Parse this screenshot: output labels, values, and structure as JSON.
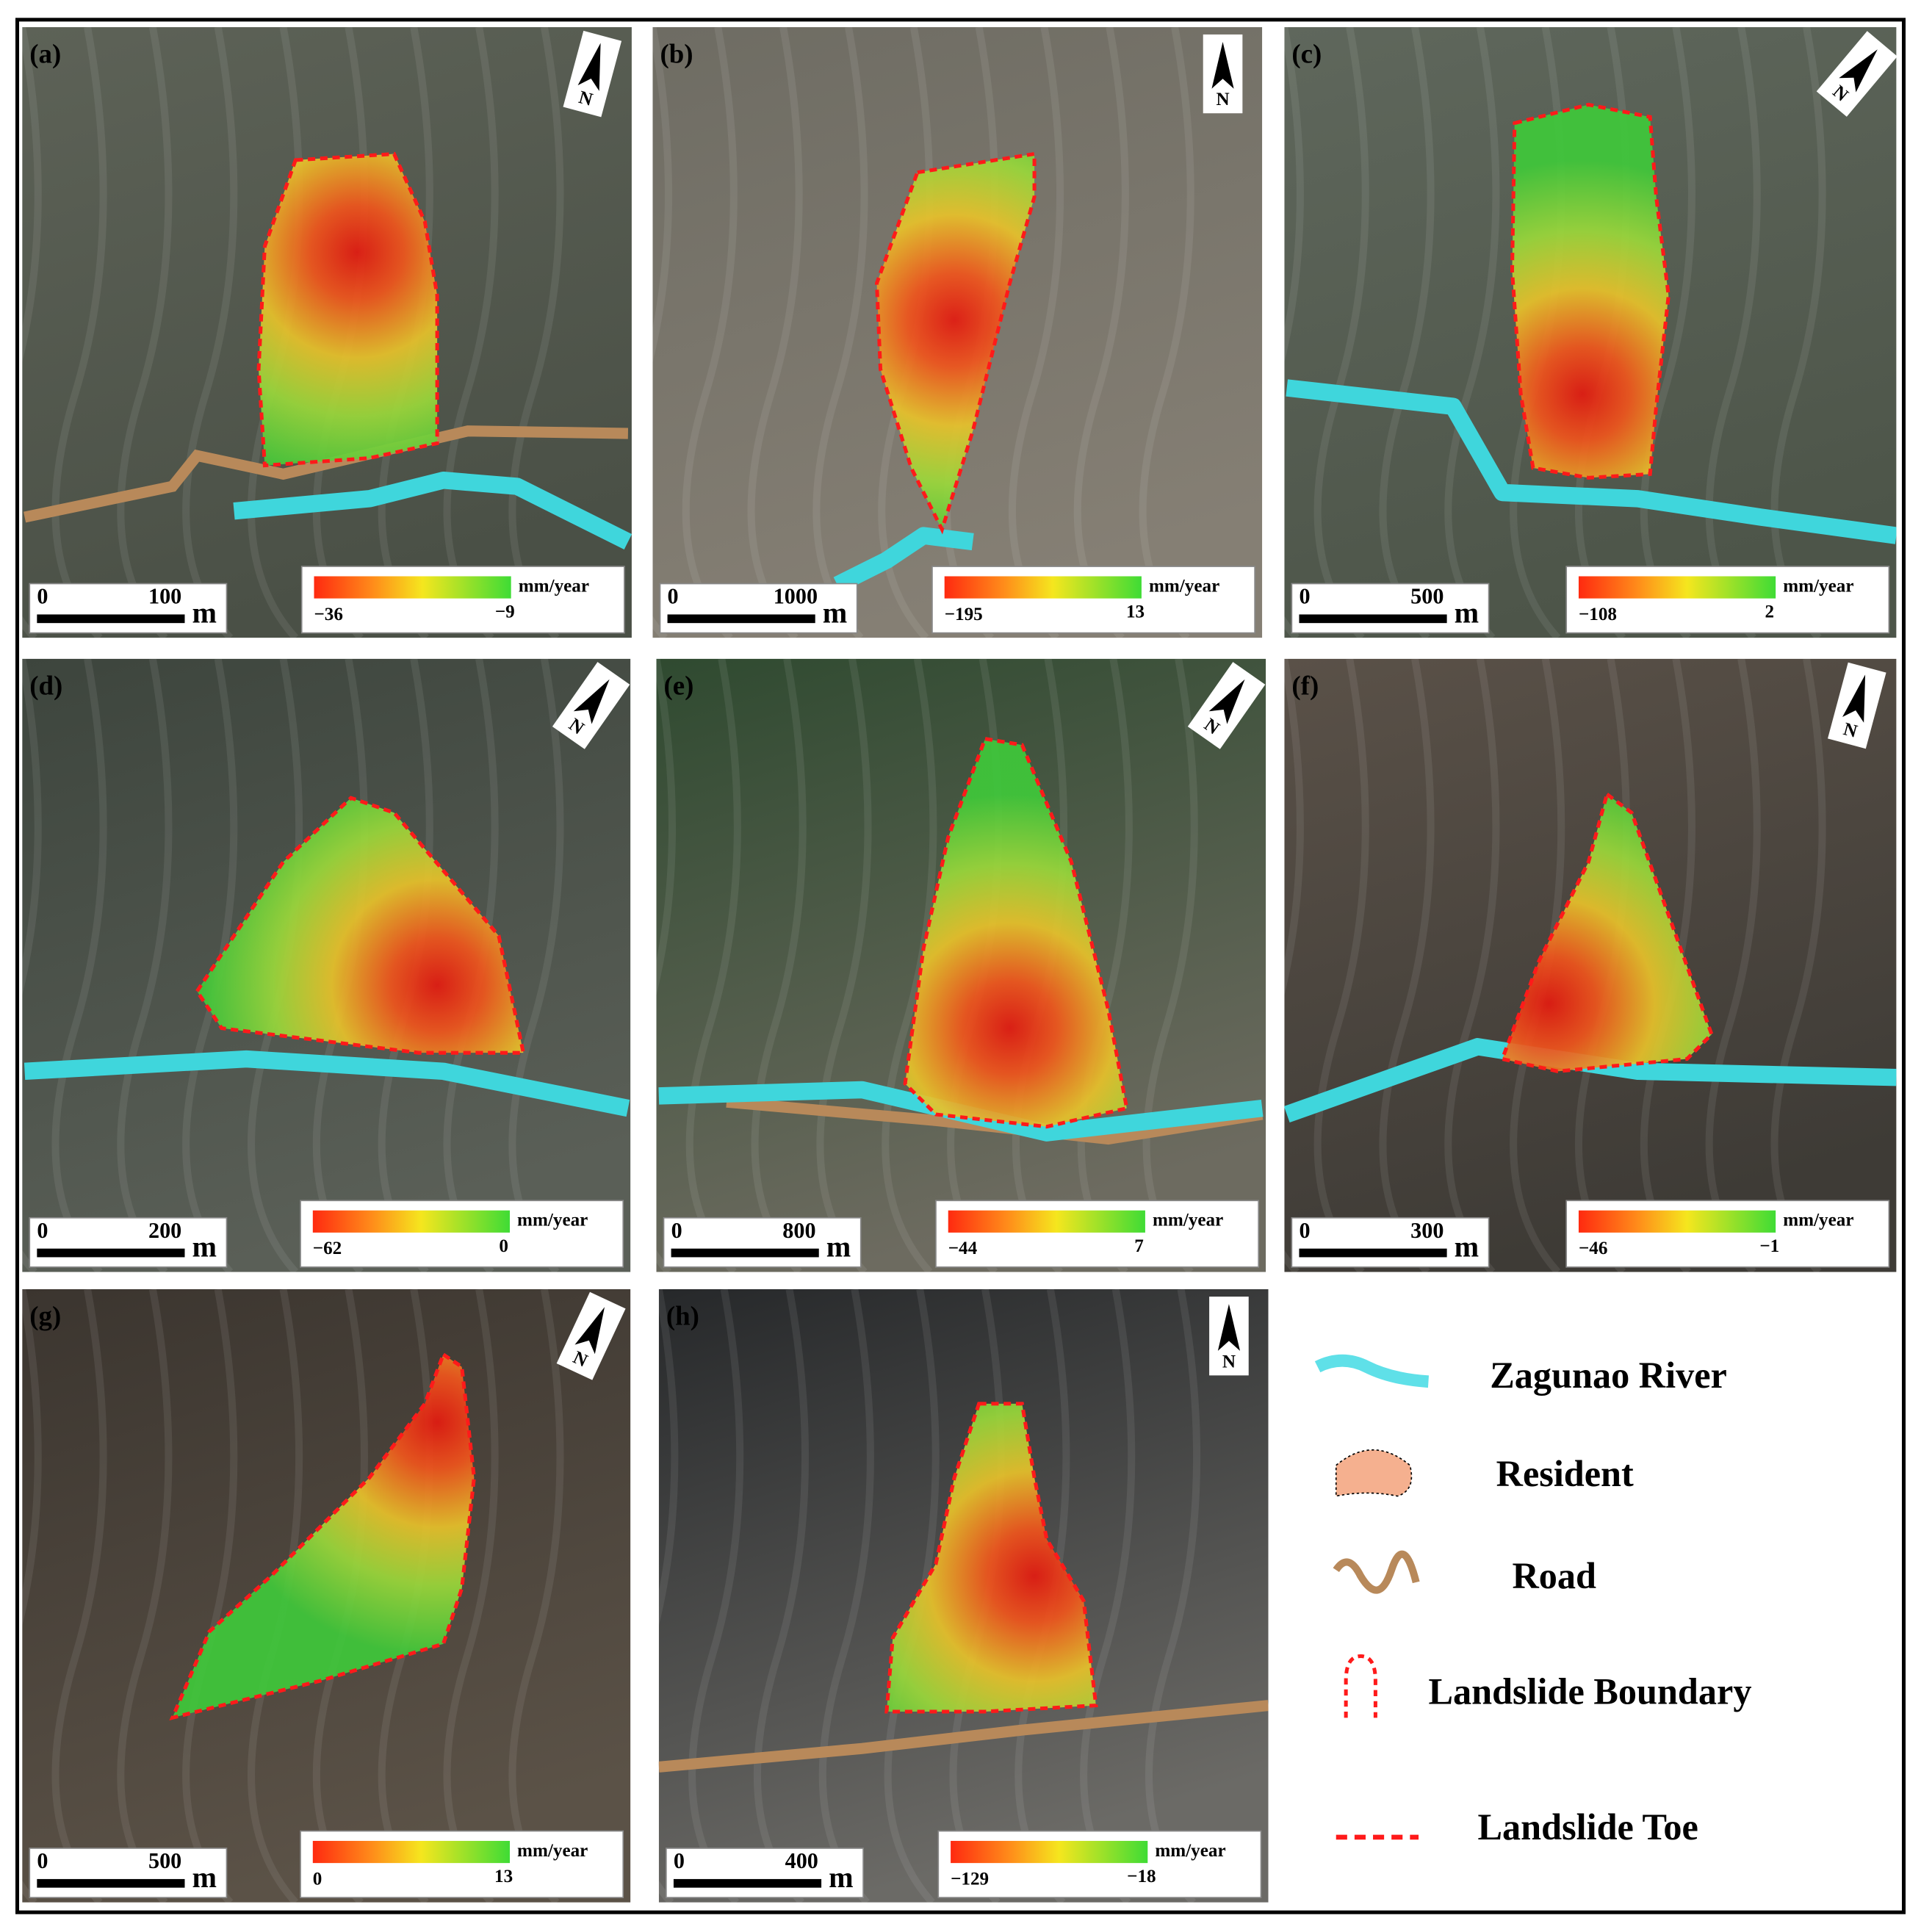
{
  "panels": [
    {
      "label": "(a)",
      "north": "N",
      "scale_start": 0,
      "scale_distance": 100,
      "scale_unit": "m",
      "unit": "mm/year",
      "min": {
        "value": -36,
        "label": "−36"
      },
      "max": {
        "value": -9,
        "label": "−9"
      }
    },
    {
      "label": "(b)",
      "north": "N",
      "scale_start": 0,
      "scale_distance": 1000,
      "scale_unit": "m",
      "unit": "mm/year",
      "min": {
        "value": -195,
        "label": "−195"
      },
      "max": 13
    },
    {
      "label": "(c)",
      "north": "N",
      "scale_start": 0,
      "scale_distance": 500,
      "scale_unit": "m",
      "unit": "mm/year",
      "min": {
        "value": -108,
        "label": "−108"
      },
      "max": 2
    },
    {
      "label": "(d)",
      "north": "N",
      "scale_start": 0,
      "scale_distance": 200,
      "scale_unit": "m",
      "unit": "mm/year",
      "min": {
        "value": -62,
        "label": "−62"
      },
      "max": 0
    },
    {
      "label": "(e)",
      "north": "N",
      "scale_start": 0,
      "scale_distance": 800,
      "scale_unit": "m",
      "unit": "mm/year",
      "min": {
        "value": -44,
        "label": "−44"
      },
      "max": 7
    },
    {
      "label": "(f)",
      "north": "N",
      "scale_start": 0,
      "scale_distance": 300,
      "scale_unit": "m",
      "unit": "mm/year",
      "min": {
        "value": -46,
        "label": "−46"
      },
      "max": {
        "value": -1,
        "label": "−1"
      }
    },
    {
      "label": "(g)",
      "north": "N",
      "scale_start": 0,
      "scale_distance": 500,
      "scale_unit": "m",
      "unit": "mm/year",
      "min": 0,
      "max": 13
    },
    {
      "label": "(h)",
      "north": "N",
      "scale_start": 0,
      "scale_distance": 400,
      "scale_unit": "m",
      "unit": "mm/year",
      "min": {
        "value": -129,
        "label": "−129"
      },
      "max": {
        "value": -18,
        "label": "−18"
      }
    }
  ],
  "legend": [
    "Zagunao River",
    "Resident",
    "Road",
    "Landslide Boundary",
    "Landslide Toe"
  ]
}
